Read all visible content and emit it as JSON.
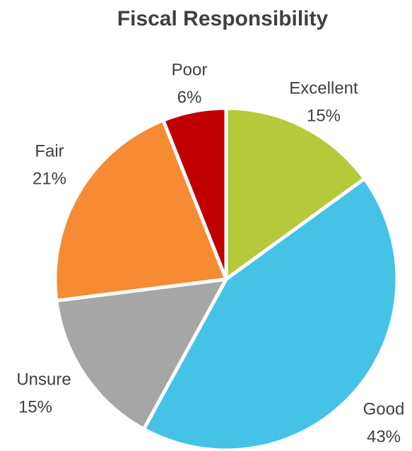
{
  "chart_data": {
    "type": "pie",
    "title": "Fiscal Responsibility",
    "categories": [
      "Excellent",
      "Good",
      "Unsure",
      "Fair",
      "Poor"
    ],
    "values": [
      15,
      43,
      15,
      21,
      6
    ],
    "value_labels": [
      "15%",
      "43%",
      "15%",
      "21%",
      "6%"
    ],
    "colors": [
      "#b5c93a",
      "#44c3e6",
      "#a6a6a6",
      "#f68b33",
      "#c00000"
    ]
  }
}
